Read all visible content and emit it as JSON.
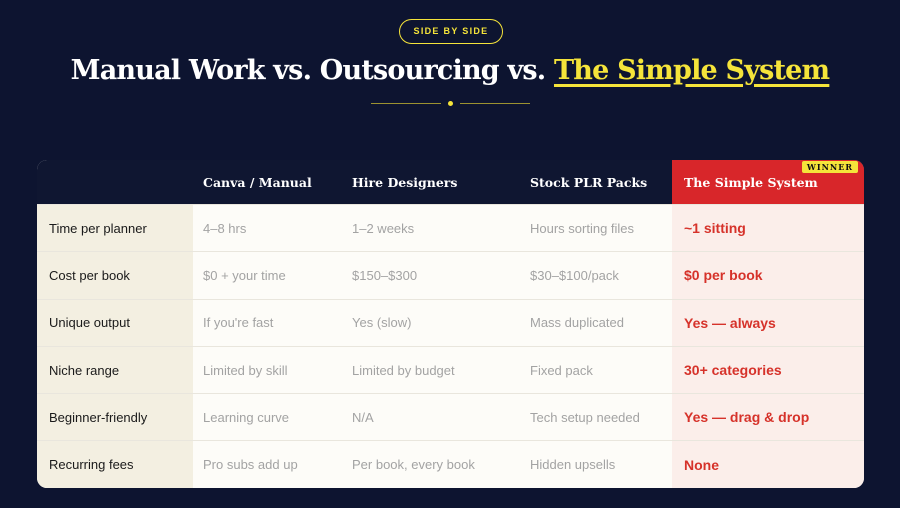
{
  "badge": "SIDE BY SIDE",
  "title": {
    "prefix": "Manual Work vs. Outsourcing vs.",
    "highlight": "The Simple System"
  },
  "table": {
    "headers": [
      "Canva / Manual",
      "Hire Designers",
      "Stock PLR Packs",
      "The Simple System"
    ],
    "winner_tag": "WINNER",
    "rows": [
      [
        "Time per planner",
        "4–8 hrs",
        "1–2 weeks",
        "Hours sorting files",
        "~1 sitting"
      ],
      [
        "Cost per book",
        "$0 + your time",
        "$150–$300",
        "$30–$100/pack",
        "$0 per book"
      ],
      [
        "Unique output",
        "If you're fast",
        "Yes (slow)",
        "Mass duplicated",
        "Yes — always"
      ],
      [
        "Niche range",
        "Limited by skill",
        "Limited by budget",
        "Fixed pack",
        "30+ categories"
      ],
      [
        "Beginner-friendly",
        "Learning curve",
        "N/A",
        "Tech setup needed",
        "Yes — drag & drop"
      ],
      [
        "Recurring fees",
        "Pro subs add up",
        "Per book, every book",
        "Hidden upsells",
        "None"
      ]
    ]
  }
}
